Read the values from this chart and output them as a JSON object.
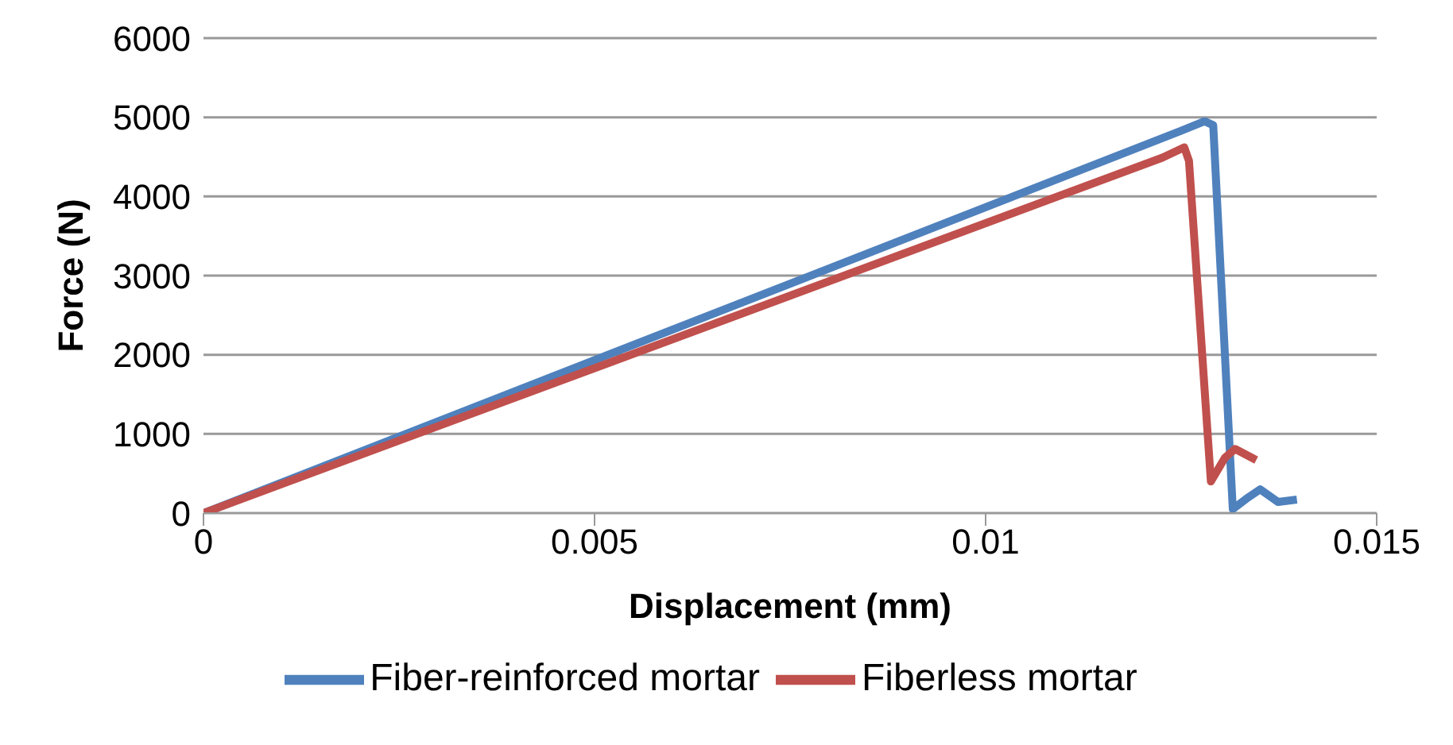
{
  "chart_data": {
    "type": "line",
    "xlabel": "Displacement (mm)",
    "ylabel": "Force (N)",
    "xlim": [
      0,
      0.015
    ],
    "xticks": [
      0,
      0.005,
      0.01,
      0.015
    ],
    "ylim": [
      0,
      6000
    ],
    "yticks": [
      0,
      1000,
      2000,
      3000,
      4000,
      5000,
      6000
    ],
    "grid": "y",
    "legend": "bottom",
    "marker": "none",
    "line_style": "solid",
    "series": [
      {
        "name": "Fiber-reinforced mortar",
        "color": "#4f81bd",
        "x": [
          0,
          0.0125,
          0.0128,
          0.01291,
          0.01316,
          0.01336,
          0.01351,
          0.01374,
          0.01398
        ],
        "values": [
          0,
          4830,
          4950,
          4900,
          50,
          200,
          300,
          140,
          170
        ]
      },
      {
        "name": "Fiberless mortar",
        "color": "#c0504d",
        "x": [
          0,
          0.01226,
          0.01254,
          0.0126,
          0.01288,
          0.01306,
          0.01319,
          0.01346
        ],
        "values": [
          0,
          4490,
          4620,
          4450,
          400,
          700,
          810,
          670
        ]
      }
    ]
  }
}
